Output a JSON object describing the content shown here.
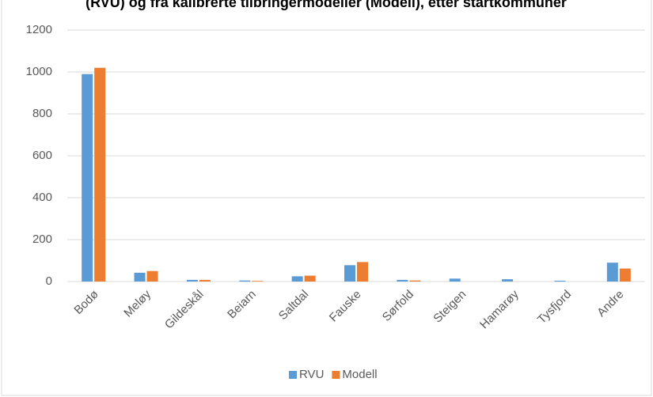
{
  "chart_data": {
    "type": "bar",
    "title": "(RVU) og fra kalibrerte tilbringermodeller (Modell), etter startkommuner",
    "categories": [
      "Bodø",
      "Meløy",
      "Gildeskål",
      "Beiarn",
      "Saltdal",
      "Fauske",
      "Sørfold",
      "Steigen",
      "Hamarøy",
      "Tysfjord",
      "Andre"
    ],
    "series": [
      {
        "name": "RVU",
        "color": "#5b9bd5",
        "values": [
          990,
          42,
          8,
          5,
          25,
          78,
          8,
          14,
          11,
          4,
          90
        ]
      },
      {
        "name": "Modell",
        "color": "#ed7d31",
        "values": [
          1020,
          50,
          8,
          3,
          28,
          93,
          5,
          0,
          0,
          0,
          62
        ]
      }
    ],
    "ylim": [
      0,
      1200
    ],
    "yticks": [
      0,
      200,
      400,
      600,
      800,
      1000,
      1200
    ],
    "grid": true,
    "legend": "bottom"
  }
}
